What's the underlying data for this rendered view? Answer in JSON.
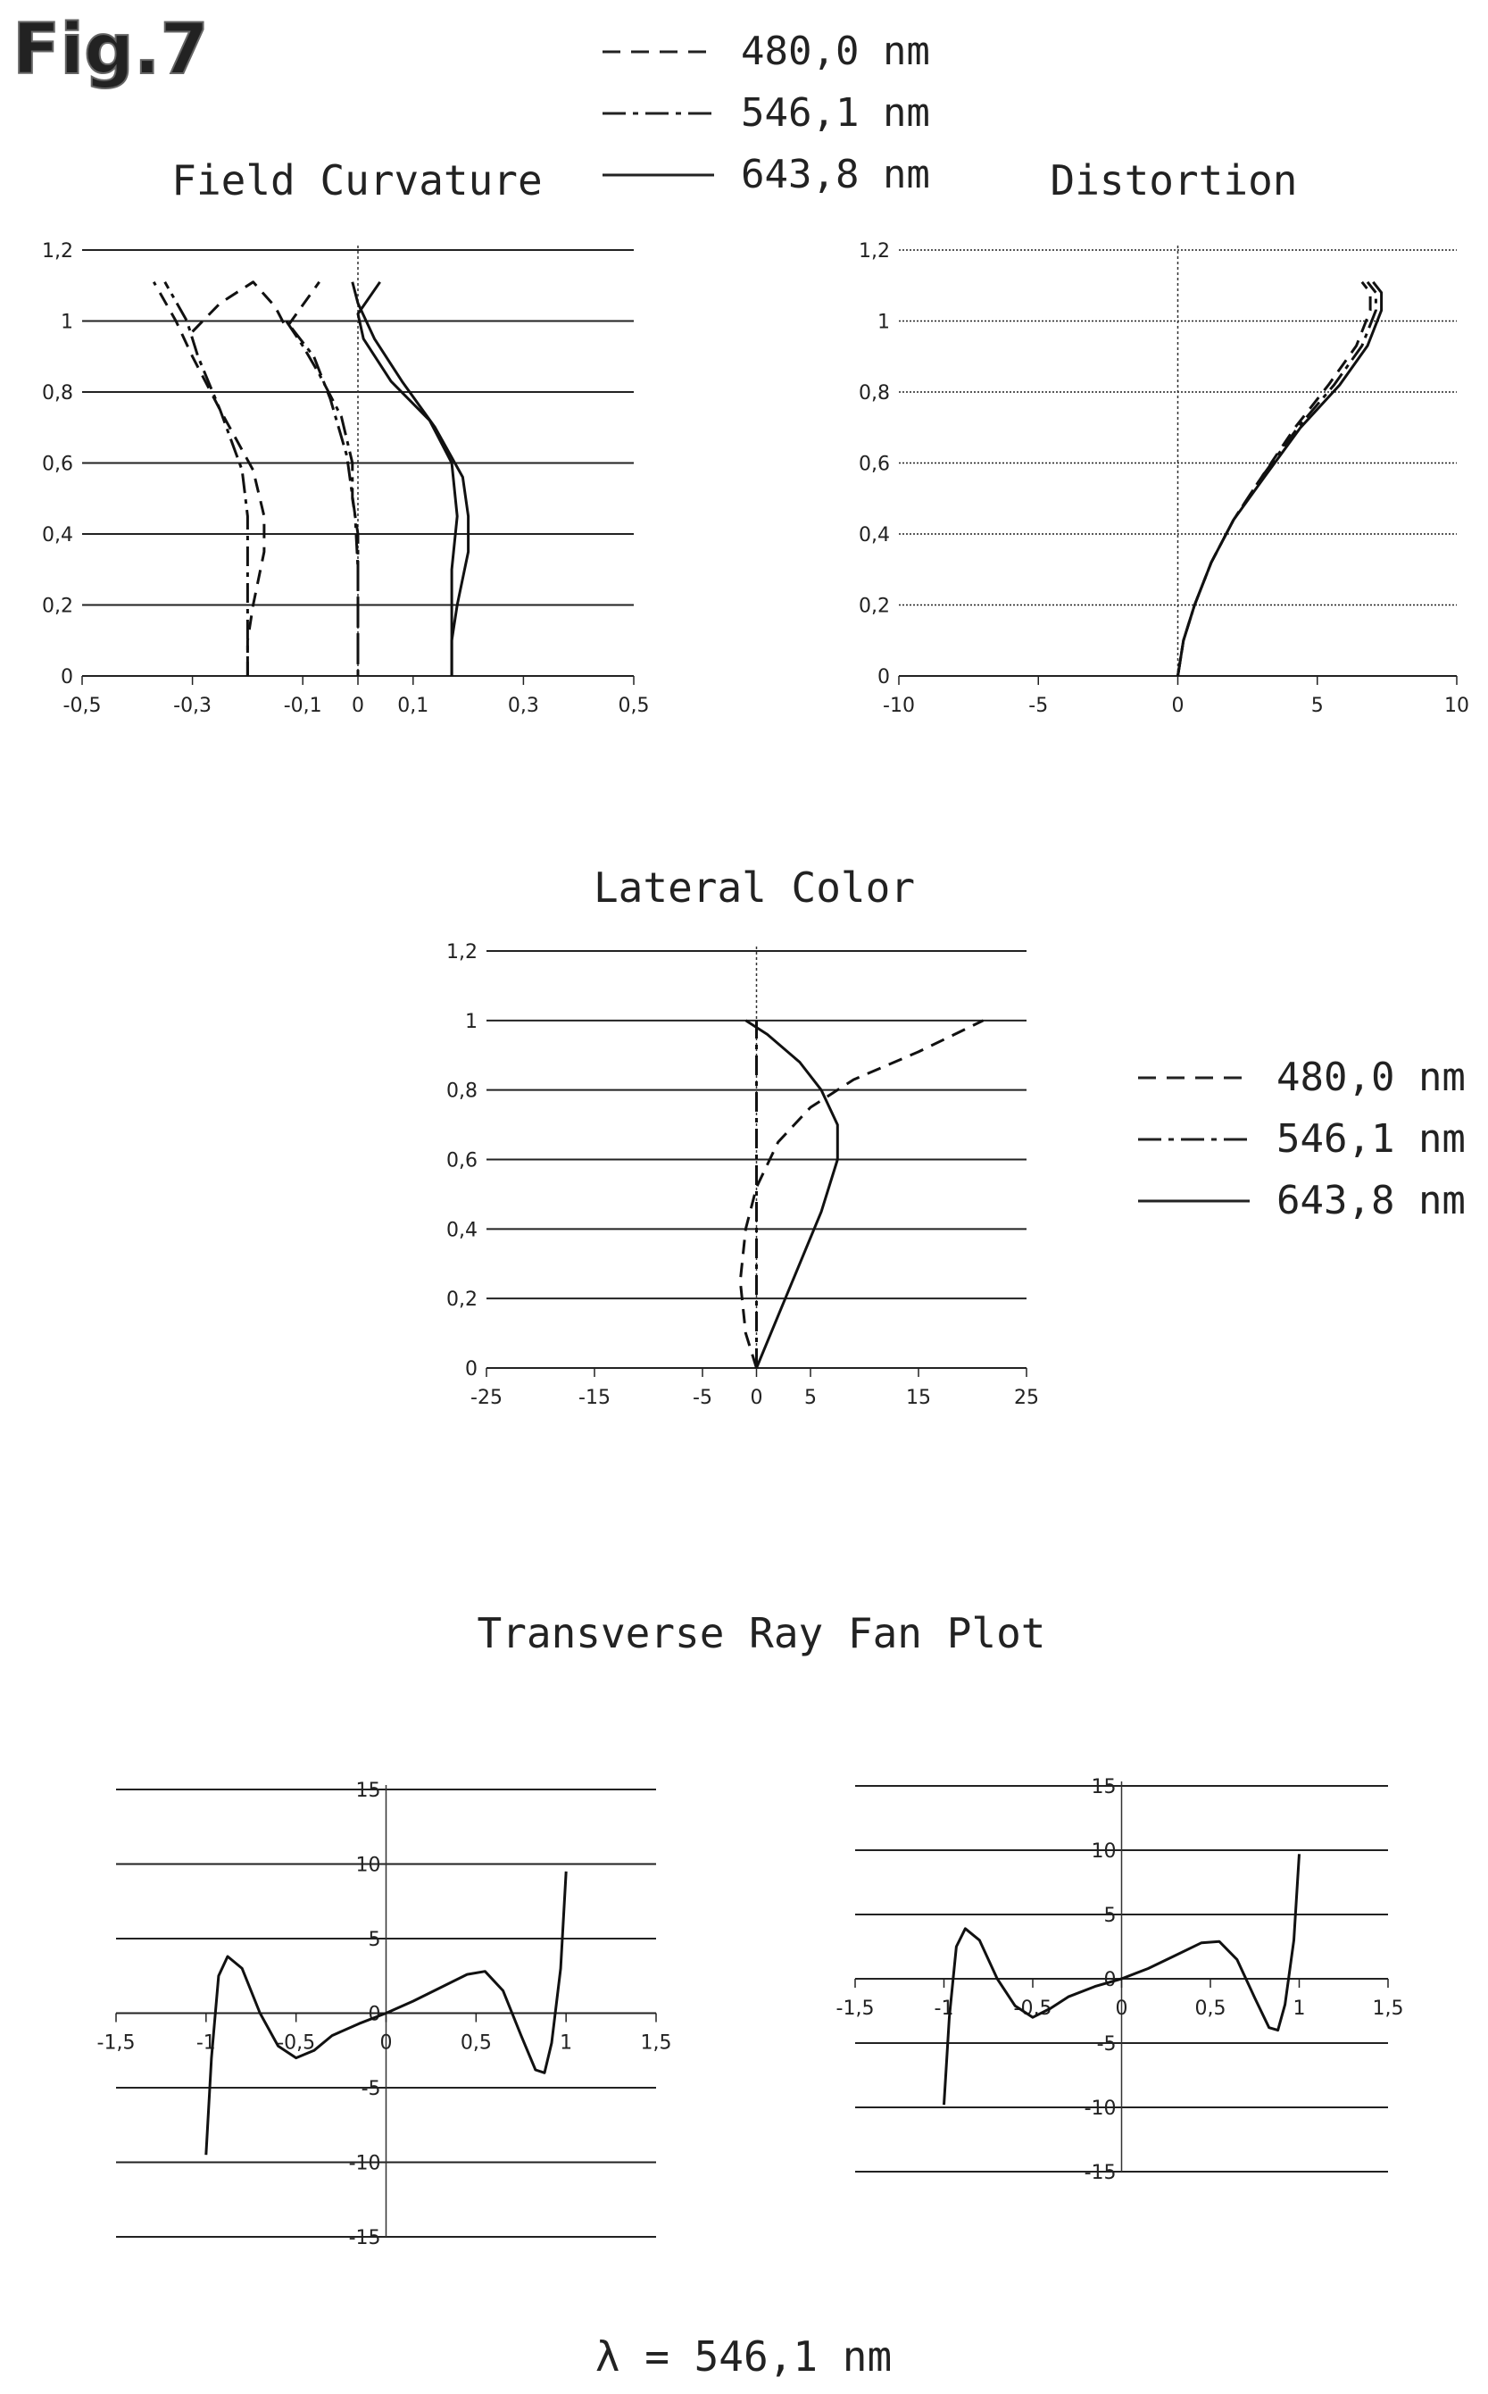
{
  "figure_label": "Fig.7",
  "wavelength_note": "λ = 546,1 nm",
  "section_title": "Transverse Ray Fan Plot",
  "legend": [
    {
      "label": "480,0 nm",
      "dash": "dashed"
    },
    {
      "label": "546,1 nm",
      "dash": "dash-dot"
    },
    {
      "label": "643,8 nm",
      "dash": "solid"
    }
  ],
  "chart_data": [
    {
      "id": "field_curvature",
      "type": "line",
      "title": "Field Curvature",
      "xlim": [
        -0.5,
        0.5
      ],
      "ylim": [
        0,
        1.2
      ],
      "xticks": [
        -0.5,
        -0.3,
        -0.1,
        0,
        0.1,
        0.3,
        0.5
      ],
      "xtick_labels": [
        "-0,5",
        "-0,3",
        "-0,1",
        "0",
        "0,1",
        "0,3",
        "0,5"
      ],
      "yticks": [
        0,
        0.2,
        0.4,
        0.6,
        0.8,
        1,
        1.2
      ],
      "ytick_labels": [
        "0",
        "0,2",
        "0,4",
        "0,6",
        "0,8",
        "1",
        "1,2"
      ],
      "grid": "horizontal",
      "series": [
        {
          "name": "480,0 nm",
          "dash": "dashed",
          "points": [
            [
              -0.2,
              0
            ],
            [
              -0.2,
              0.1
            ],
            [
              -0.19,
              0.2
            ],
            [
              -0.17,
              0.35
            ],
            [
              -0.17,
              0.45
            ],
            [
              -0.19,
              0.58
            ],
            [
              -0.25,
              0.75
            ],
            [
              -0.3,
              0.9
            ],
            [
              -0.33,
              1.0
            ],
            [
              -0.37,
              1.11
            ]
          ]
        },
        {
          "name": "480,0 nm",
          "dash": "dashed",
          "points": [
            [
              -0.3,
              0.97
            ],
            [
              -0.25,
              1.05
            ],
            [
              -0.19,
              1.11
            ],
            [
              -0.15,
              1.04
            ],
            [
              -0.13,
              0.98
            ],
            [
              -0.07,
              1.11
            ]
          ]
        },
        {
          "name": "546,1 nm",
          "dash": "dash-dot",
          "points": [
            [
              -0.2,
              0
            ],
            [
              -0.2,
              0.1
            ],
            [
              -0.2,
              0.2
            ],
            [
              -0.2,
              0.35
            ],
            [
              -0.2,
              0.45
            ],
            [
              -0.21,
              0.58
            ],
            [
              -0.25,
              0.75
            ],
            [
              -0.29,
              0.9
            ],
            [
              -0.31,
              1.0
            ],
            [
              -0.35,
              1.11
            ]
          ]
        },
        {
          "name": "546,1 nm",
          "dash": "dash-dot",
          "points": [
            [
              -0.13,
              1.0
            ],
            [
              -0.1,
              0.93
            ],
            [
              -0.07,
              0.85
            ],
            [
              -0.03,
              0.73
            ],
            [
              -0.01,
              0.6
            ],
            [
              -0.01,
              0.5
            ],
            [
              0,
              0.4
            ],
            [
              0,
              0.2
            ],
            [
              0,
              0
            ]
          ]
        },
        {
          "name": "546,1 nm",
          "dash": "dash-dot",
          "points": [
            [
              -0.12,
              0.98
            ],
            [
              -0.08,
              0.9
            ],
            [
              -0.05,
              0.78
            ],
            [
              -0.02,
              0.62
            ],
            [
              -0.005,
              0.45
            ],
            [
              0,
              0.3
            ],
            [
              0,
              0
            ]
          ]
        },
        {
          "name": "643,8 nm",
          "dash": "solid",
          "points": [
            [
              0.17,
              0
            ],
            [
              0.17,
              0.1
            ],
            [
              0.18,
              0.2
            ],
            [
              0.2,
              0.35
            ],
            [
              0.2,
              0.45
            ],
            [
              0.19,
              0.56
            ],
            [
              0.14,
              0.7
            ],
            [
              0.08,
              0.83
            ],
            [
              0.03,
              0.95
            ],
            [
              0,
              1.05
            ],
            [
              -0.01,
              1.11
            ]
          ]
        },
        {
          "name": "643,8 nm",
          "dash": "solid",
          "points": [
            [
              0.17,
              0
            ],
            [
              0.17,
              0.15
            ],
            [
              0.17,
              0.3
            ],
            [
              0.18,
              0.45
            ],
            [
              0.17,
              0.6
            ],
            [
              0.13,
              0.72
            ],
            [
              0.06,
              0.83
            ],
            [
              0.01,
              0.95
            ],
            [
              0,
              1.02
            ],
            [
              0.04,
              1.11
            ]
          ]
        }
      ]
    },
    {
      "id": "distortion",
      "type": "line",
      "title": "Distortion",
      "xlim": [
        -10,
        10
      ],
      "ylim": [
        0,
        1.2
      ],
      "xticks": [
        -10,
        -5,
        0,
        5,
        10
      ],
      "xtick_labels": [
        "-10",
        "-5",
        "0",
        "5",
        "10"
      ],
      "yticks": [
        0,
        0.2,
        0.4,
        0.6,
        0.8,
        1,
        1.2
      ],
      "ytick_labels": [
        "0",
        "0,2",
        "0,4",
        "0,6",
        "0,8",
        "1",
        "1,2"
      ],
      "grid": "horizontal",
      "series": [
        {
          "name": "480,0 nm",
          "dash": "dashed",
          "points": [
            [
              0,
              0
            ],
            [
              0.2,
              0.1
            ],
            [
              0.6,
              0.2
            ],
            [
              1.2,
              0.32
            ],
            [
              2.0,
              0.44
            ],
            [
              3.0,
              0.56
            ],
            [
              4.2,
              0.7
            ],
            [
              5.4,
              0.82
            ],
            [
              6.4,
              0.93
            ],
            [
              6.9,
              1.03
            ],
            [
              6.9,
              1.08
            ],
            [
              6.6,
              1.11
            ]
          ]
        },
        {
          "name": "546,1 nm",
          "dash": "dash-dot",
          "points": [
            [
              0,
              0
            ],
            [
              0.2,
              0.1
            ],
            [
              0.6,
              0.2
            ],
            [
              1.2,
              0.32
            ],
            [
              2.0,
              0.44
            ],
            [
              3.0,
              0.56
            ],
            [
              4.3,
              0.7
            ],
            [
              5.6,
              0.82
            ],
            [
              6.6,
              0.93
            ],
            [
              7.1,
              1.03
            ],
            [
              7.1,
              1.08
            ],
            [
              6.8,
              1.11
            ]
          ]
        },
        {
          "name": "643,8 nm",
          "dash": "solid",
          "points": [
            [
              0,
              0
            ],
            [
              0.2,
              0.1
            ],
            [
              0.6,
              0.2
            ],
            [
              1.2,
              0.32
            ],
            [
              2.0,
              0.44
            ],
            [
              3.1,
              0.56
            ],
            [
              4.4,
              0.7
            ],
            [
              5.8,
              0.82
            ],
            [
              6.8,
              0.93
            ],
            [
              7.3,
              1.03
            ],
            [
              7.3,
              1.08
            ],
            [
              7.0,
              1.11
            ]
          ]
        }
      ]
    },
    {
      "id": "lateral_color",
      "type": "line",
      "title": "Lateral Color",
      "xlim": [
        -25,
        25
      ],
      "ylim": [
        0,
        1.2
      ],
      "xticks": [
        -25,
        -15,
        -5,
        0,
        5,
        15,
        25
      ],
      "xtick_labels": [
        "-25",
        "-15",
        "-5",
        "0",
        "5",
        "15",
        "25"
      ],
      "yticks": [
        0,
        0.2,
        0.4,
        0.6,
        0.8,
        1,
        1.2
      ],
      "ytick_labels": [
        "0",
        "0,2",
        "0,4",
        "0,6",
        "0,8",
        "1",
        "1,2"
      ],
      "grid": "horizontal",
      "series": [
        {
          "name": "480,0 nm",
          "dash": "dashed",
          "points": [
            [
              0,
              0
            ],
            [
              -1,
              0.1
            ],
            [
              -1.5,
              0.25
            ],
            [
              -1,
              0.4
            ],
            [
              0,
              0.52
            ],
            [
              2,
              0.65
            ],
            [
              5,
              0.75
            ],
            [
              9,
              0.83
            ],
            [
              15,
              0.91
            ],
            [
              21,
              1.0
            ]
          ]
        },
        {
          "name": "546,1 nm",
          "dash": "dash-dot",
          "points": [
            [
              0,
              0
            ],
            [
              0,
              0.25
            ],
            [
              0,
              0.5
            ],
            [
              0,
              0.75
            ],
            [
              0,
              1.0
            ]
          ]
        },
        {
          "name": "643,8 nm",
          "dash": "solid",
          "points": [
            [
              0,
              0
            ],
            [
              2,
              0.15
            ],
            [
              4,
              0.3
            ],
            [
              6,
              0.45
            ],
            [
              7.5,
              0.6
            ],
            [
              7.5,
              0.7
            ],
            [
              6,
              0.8
            ],
            [
              4,
              0.88
            ],
            [
              1,
              0.96
            ],
            [
              -1,
              1.0
            ]
          ]
        }
      ]
    },
    {
      "id": "ray_fan_left",
      "type": "line",
      "title": "",
      "xlim": [
        -1.5,
        1.5
      ],
      "ylim": [
        -15,
        15
      ],
      "xticks": [
        -1.5,
        -1,
        -0.5,
        0,
        0.5,
        1,
        1.5
      ],
      "xtick_labels": [
        "-1,5",
        "-1",
        "-0,5",
        "0",
        "0,5",
        "1",
        "1,5"
      ],
      "yticks": [
        -15,
        -10,
        -5,
        0,
        5,
        10,
        15
      ],
      "ytick_labels": [
        "-15",
        "-10",
        "-5",
        "0",
        "5",
        "10",
        "15"
      ],
      "grid": "horizontal",
      "series": [
        {
          "name": "546,1 nm",
          "dash": "solid",
          "points": [
            [
              -1,
              -9.5
            ],
            [
              -0.97,
              -3
            ],
            [
              -0.93,
              2.5
            ],
            [
              -0.88,
              3.8
            ],
            [
              -0.8,
              3
            ],
            [
              -0.7,
              0
            ],
            [
              -0.6,
              -2.2
            ],
            [
              -0.5,
              -3
            ],
            [
              -0.4,
              -2.5
            ],
            [
              -0.3,
              -1.5
            ],
            [
              -0.15,
              -0.7
            ],
            [
              0,
              0
            ],
            [
              0.15,
              0.8
            ],
            [
              0.3,
              1.7
            ],
            [
              0.45,
              2.6
            ],
            [
              0.55,
              2.8
            ],
            [
              0.65,
              1.5
            ],
            [
              0.75,
              -1.5
            ],
            [
              0.83,
              -3.8
            ],
            [
              0.88,
              -4
            ],
            [
              0.92,
              -2
            ],
            [
              0.97,
              3
            ],
            [
              1,
              9.5
            ]
          ]
        }
      ]
    },
    {
      "id": "ray_fan_right",
      "type": "line",
      "title": "",
      "xlim": [
        -1.5,
        1.5
      ],
      "ylim": [
        -15,
        15
      ],
      "xticks": [
        -1.5,
        -1,
        -0.5,
        0,
        0.5,
        1,
        1.5
      ],
      "xtick_labels": [
        "-1,5",
        "-1",
        "-0,5",
        "0",
        "0,5",
        "1",
        "1,5"
      ],
      "yticks": [
        -15,
        -10,
        -5,
        0,
        5,
        10,
        15
      ],
      "ytick_labels": [
        "-15",
        "-10",
        "-5",
        "0",
        "5",
        "10",
        "15"
      ],
      "grid": "horizontal",
      "series": [
        {
          "name": "546,1 nm",
          "dash": "solid",
          "points": [
            [
              -1,
              -9.8
            ],
            [
              -0.97,
              -3
            ],
            [
              -0.93,
              2.5
            ],
            [
              -0.88,
              3.9
            ],
            [
              -0.8,
              3
            ],
            [
              -0.7,
              0
            ],
            [
              -0.6,
              -2.1
            ],
            [
              -0.5,
              -3
            ],
            [
              -0.4,
              -2.3
            ],
            [
              -0.3,
              -1.4
            ],
            [
              -0.15,
              -0.6
            ],
            [
              0,
              0
            ],
            [
              0.15,
              0.8
            ],
            [
              0.3,
              1.8
            ],
            [
              0.45,
              2.8
            ],
            [
              0.55,
              2.9
            ],
            [
              0.65,
              1.5
            ],
            [
              0.75,
              -1.5
            ],
            [
              0.83,
              -3.8
            ],
            [
              0.88,
              -4
            ],
            [
              0.92,
              -2
            ],
            [
              0.97,
              3
            ],
            [
              1,
              9.7
            ]
          ]
        }
      ]
    }
  ]
}
